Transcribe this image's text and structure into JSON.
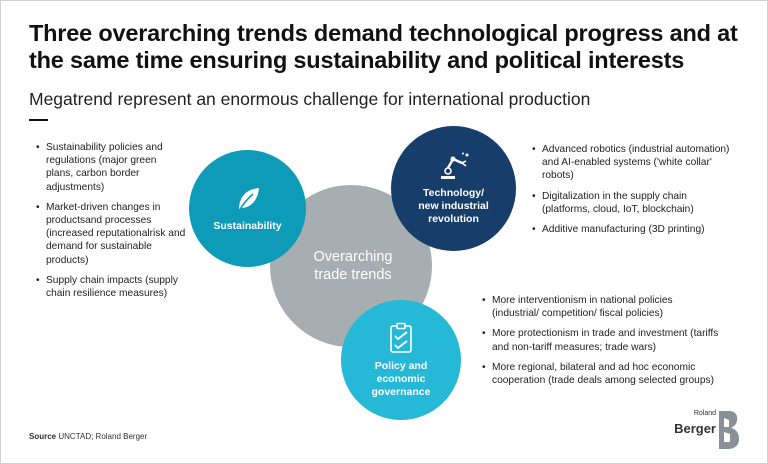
{
  "title": "Three overarching trends demand technological progress and at the same time ensuring sustainability and political interests",
  "subtitle": "Megatrend represent an enormous challenge for international production",
  "center": {
    "line1": "Overarching",
    "line2": "trade trends"
  },
  "sustainability": {
    "label": "Sustainability",
    "icon": "leaf-icon",
    "bullets": [
      "Sustainability policies and regulations (major green plans, carbon border adjustments)",
      "Market-driven changes in productsand processes (increased reputationalrisk and demand for sustainable products)",
      "Supply chain impacts (supply chain resilience measures)"
    ]
  },
  "technology": {
    "label_line1": "Technology/",
    "label_line2": "new industrial",
    "label_line3": "revolution",
    "icon": "robot-arm-icon",
    "bullets": [
      "Advanced robotics (industrial automation) and AI-enabled systems ('white collar' robots)",
      "Digitalization in the supply chain (platforms, cloud, IoT, blockchain)",
      "Additive manufacturing (3D printing)"
    ]
  },
  "policy": {
    "label_line1": "Policy and",
    "label_line2": "economic",
    "label_line3": "governance",
    "icon": "clipboard-check-icon",
    "bullets": [
      "More interventionism in national policies (industrial/ competition/ fiscal policies)",
      "More protectionism in trade and investment (tariffs and non-tariff measures; trade wars)",
      "More regional, bilateral and ad hoc economic cooperation (trade deals among selected groups)"
    ]
  },
  "source": {
    "label": "Source",
    "text": "UNCTAD; Roland Berger"
  },
  "logo": {
    "line1": "Roland",
    "line2": "Berger"
  },
  "colors": {
    "center": "#a7aeb2",
    "sustainability": "#0e9bb8",
    "technology": "#173d6a",
    "policy": "#25b8d7"
  }
}
